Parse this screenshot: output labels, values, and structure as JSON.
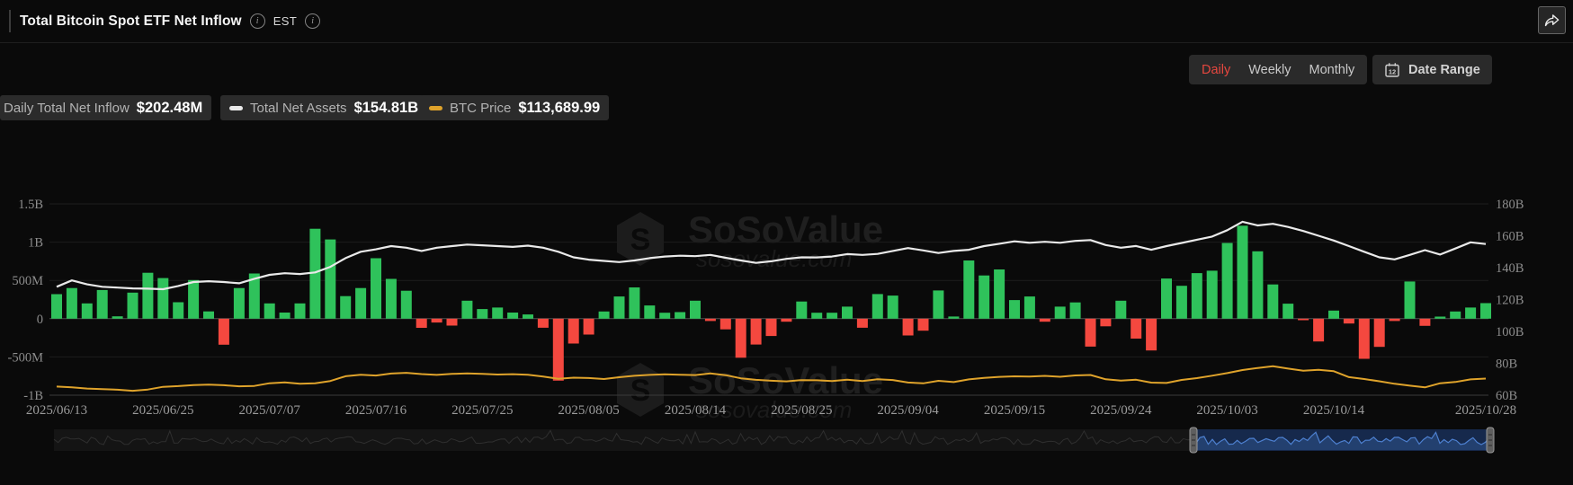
{
  "header": {
    "title": "Total Bitcoin Spot ETF Net Inflow",
    "est_label": "EST"
  },
  "toolbar": {
    "tabs": [
      {
        "label": "Daily",
        "active": true
      },
      {
        "label": "Weekly",
        "active": false
      },
      {
        "label": "Monthly",
        "active": false
      }
    ],
    "date_range_label": "Date Range",
    "calendar_icon_text": "12",
    "active_tab_color": "#e5473f"
  },
  "legend": [
    {
      "label": "Daily Total Net Inflow",
      "value": "$202.48M",
      "marker": null
    },
    {
      "label": "Total Net Assets",
      "value": "$154.81B",
      "marker": "#e9e9e9"
    },
    {
      "label": "BTC Price",
      "value": "$113,689.99",
      "marker": "#dfa32b"
    }
  ],
  "watermark": {
    "brand": "SoSoValue",
    "domain": "sosovalue.com"
  },
  "chart_data": {
    "type": "bar",
    "title": "Total Bitcoin Spot ETF Net Inflow",
    "num_days": 95,
    "x_tick_labels": [
      {
        "label": "2025/06/13",
        "day": 0
      },
      {
        "label": "2025/06/25",
        "day": 7
      },
      {
        "label": "2025/07/07",
        "day": 14
      },
      {
        "label": "2025/07/16",
        "day": 21
      },
      {
        "label": "2025/07/25",
        "day": 28
      },
      {
        "label": "2025/08/05",
        "day": 35
      },
      {
        "label": "2025/08/14",
        "day": 42
      },
      {
        "label": "2025/08/25",
        "day": 49
      },
      {
        "label": "2025/09/04",
        "day": 56
      },
      {
        "label": "2025/09/15",
        "day": 63
      },
      {
        "label": "2025/09/24",
        "day": 70
      },
      {
        "label": "2025/10/03",
        "day": 77
      },
      {
        "label": "2025/10/14",
        "day": 84
      },
      {
        "label": "2025/10/28",
        "day": 94
      }
    ],
    "left_axis": {
      "ticks": [
        "1.5B",
        "1B",
        "500M",
        "0",
        "-500M",
        "-1B"
      ],
      "tick_values": [
        1500,
        1000,
        500,
        0,
        -500,
        -1000
      ],
      "min": -1000,
      "max": 1500,
      "unit": "M USD"
    },
    "right_axis": {
      "ticks": [
        "180B",
        "160B",
        "140B",
        "120B",
        "100B",
        "80B",
        "60B"
      ],
      "tick_values": [
        180,
        160,
        140,
        120,
        100,
        80,
        60
      ],
      "min": 60,
      "max": 180,
      "unit": "B USD"
    },
    "btc_axis": {
      "min": 96.7,
      "max": 291.9,
      "unit": "K USD",
      "hidden": true
    },
    "grid": true,
    "legend_position": "top-left",
    "series": [
      {
        "name": "Daily Total Net Inflow",
        "type": "bar",
        "axis": "left",
        "unit": "M USD",
        "color_pos": "#2fc25b",
        "color_neg": "#f4483f",
        "values": [
          320,
          400,
          200,
          375,
          30,
          340,
          600,
          530,
          215,
          505,
          95,
          -340,
          400,
          590,
          200,
          80,
          200,
          1175,
          1035,
          295,
          400,
          790,
          520,
          365,
          -120,
          -50,
          -90,
          235,
          125,
          145,
          80,
          55,
          -118,
          -810,
          -325,
          -208,
          94,
          290,
          408,
          172,
          78,
          86,
          235,
          -30,
          -140,
          -510,
          -338,
          -227,
          -40,
          224,
          78,
          78,
          157,
          -118,
          322,
          302,
          -220,
          -157,
          368,
          28,
          760,
          565,
          643,
          243,
          290,
          -40,
          157,
          212,
          -365,
          -100,
          235,
          -260,
          -415,
          525,
          430,
          595,
          627,
          990,
          1215,
          880,
          447,
          196,
          -20,
          -298,
          106,
          -63,
          -525,
          -368,
          -31,
          486,
          -94,
          27,
          94,
          145,
          202.48
        ]
      },
      {
        "name": "Total Net Assets",
        "type": "line",
        "axis": "right",
        "unit": "B USD",
        "color": "#e9e9e9",
        "values": [
          128,
          132,
          129.5,
          128,
          127.5,
          127,
          126.8,
          126.5,
          128.5,
          131,
          131.5,
          131,
          130.2,
          133,
          135.5,
          136.5,
          136,
          137,
          140.5,
          146,
          150,
          151.5,
          153.5,
          152.5,
          150.5,
          152.5,
          153.5,
          154.5,
          154,
          153.5,
          153,
          153.8,
          152.5,
          150,
          146.5,
          145,
          144.2,
          143.5,
          144.5,
          146,
          147,
          147.5,
          147.2,
          148,
          146.2,
          144.5,
          143,
          144,
          145.5,
          146.5,
          146.4,
          147,
          148.5,
          148,
          148.6,
          150.5,
          152.3,
          150.8,
          149.2,
          150.5,
          151.2,
          153.5,
          155,
          156.5,
          155.6,
          156.2,
          155.6,
          156.8,
          157.3,
          154.2,
          152.5,
          153.6,
          151.2,
          153.5,
          155.5,
          157.5,
          159.5,
          163.5,
          168.8,
          166.5,
          167.5,
          165.5,
          163,
          160,
          157,
          153.5,
          150,
          146.5,
          145.2,
          148,
          151,
          148.2,
          152,
          155.9,
          154.81
        ]
      },
      {
        "name": "BTC Price",
        "type": "line",
        "axis": "btc",
        "unit": "K USD",
        "color": "#dfa32b",
        "values": [
          105.5,
          104.8,
          103.5,
          102.8,
          102.3,
          101.2,
          102.5,
          105.2,
          106.0,
          107.1,
          107.4,
          106.9,
          105.8,
          106.1,
          108.9,
          109.7,
          108.4,
          108.9,
          111.2,
          116.0,
          117.6,
          116.8,
          118.8,
          119.5,
          118.2,
          117.4,
          118.4,
          119.0,
          118.4,
          117.8,
          118.1,
          117.5,
          115.8,
          113.4,
          114.6,
          114.2,
          113.2,
          115.0,
          116.5,
          117.4,
          118.0,
          117.6,
          117.2,
          118.9,
          117.1,
          113.9,
          112.4,
          111.5,
          110.8,
          112.1,
          111.9,
          111.2,
          112.5,
          111.1,
          112.9,
          112.2,
          109.6,
          108.8,
          111.4,
          110.1,
          112.8,
          114.3,
          115.4,
          115.9,
          115.7,
          116.4,
          115.5,
          116.9,
          117.3,
          112.9,
          111.6,
          112.5,
          109.5,
          109.2,
          112.3,
          114.1,
          116.6,
          119.2,
          122.4,
          124.5,
          126.2,
          123.8,
          121.7,
          122.5,
          121.2,
          115.1,
          113.2,
          110.9,
          108.3,
          106.4,
          104.7,
          108.9,
          110.2,
          112.8,
          113.69
        ]
      }
    ]
  },
  "navigator": {
    "selected_range": [
      "2025/06/13",
      "2025/10/28"
    ],
    "track_color": "#151515",
    "track_line_color": "#2f2f2f",
    "track_fill_color": "#141414",
    "selection_bg_color": "#16294c",
    "selection_fill_color": "#23406f",
    "selection_line_color": "#4d80d0"
  }
}
